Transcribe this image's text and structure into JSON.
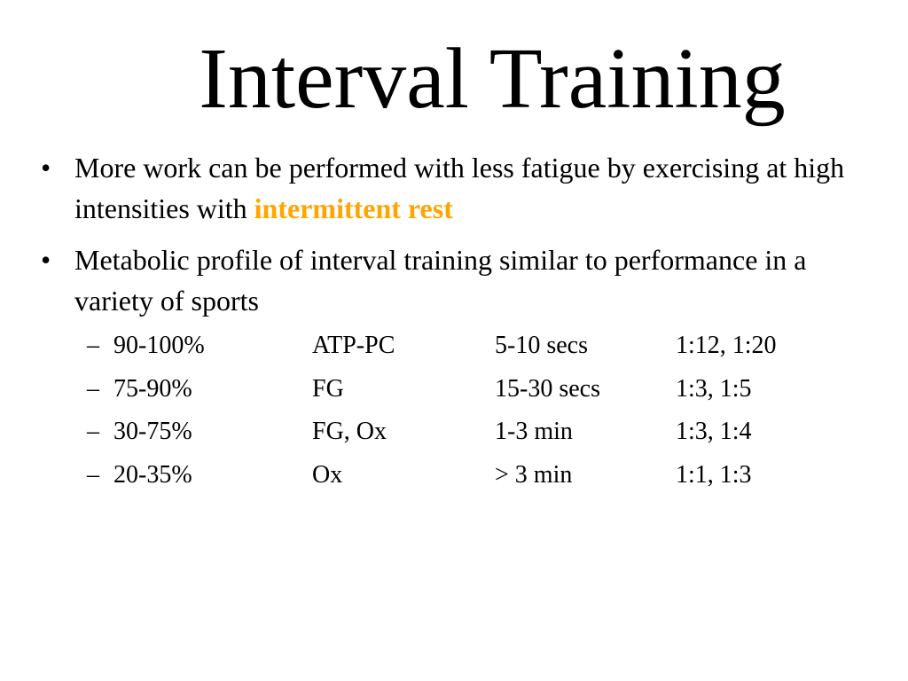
{
  "title": "Interval Training",
  "bullets": [
    {
      "marker": "•",
      "text_before": "More work can be performed with less fatigue by exercising at high intensities with ",
      "highlight": "intermittent rest",
      "highlight_color": "#FFA500"
    },
    {
      "marker": "•",
      "text": "Metabolic profile of interval training similar to performance in a variety of sports"
    }
  ],
  "sub_items": [
    {
      "marker": "–",
      "intensity": "90-100%",
      "system": "ATP-PC",
      "duration": "5-10 secs",
      "ratio": "1:12, 1:20"
    },
    {
      "marker": "–",
      "intensity": "75-90%",
      "system": "FG",
      "duration": "15-30 secs",
      "ratio": "1:3, 1:5"
    },
    {
      "marker": "–",
      "intensity": "30-75%",
      "system": "FG, Ox",
      "duration": "1-3 min",
      "ratio": "1:3, 1:4"
    },
    {
      "marker": "–",
      "intensity": "20-35%",
      "system": "Ox",
      "duration": "> 3 min",
      "ratio": "1:1, 1:3"
    }
  ]
}
